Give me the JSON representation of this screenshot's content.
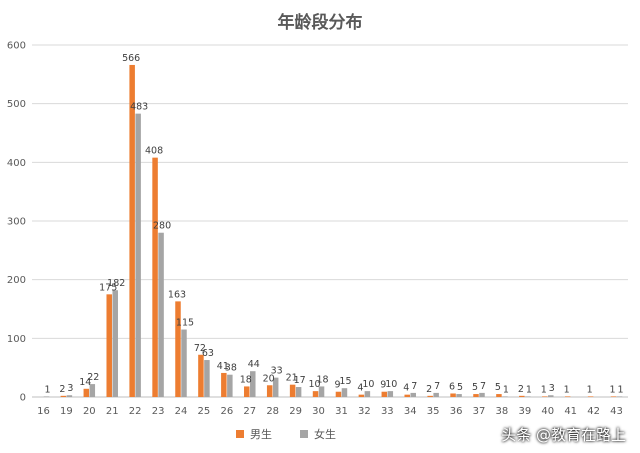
{
  "chart_data": {
    "type": "bar",
    "title": "年龄段分布",
    "categories": [
      "16",
      "19",
      "20",
      "21",
      "22",
      "23",
      "24",
      "25",
      "26",
      "27",
      "28",
      "29",
      "30",
      "31",
      "32",
      "33",
      "34",
      "35",
      "36",
      "37",
      "38",
      "39",
      "40",
      "41",
      "42",
      "43"
    ],
    "series": [
      {
        "name": "男生",
        "color": "#ED7D31",
        "values": [
          0,
          2,
          14,
          175,
          566,
          408,
          163,
          72,
          41,
          18,
          20,
          21,
          10,
          9,
          4,
          9,
          4,
          2,
          6,
          5,
          5,
          2,
          1,
          1,
          1,
          1
        ]
      },
      {
        "name": "女生",
        "color": "#A5A5A5",
        "values": [
          1,
          3,
          22,
          182,
          483,
          280,
          115,
          63,
          38,
          44,
          33,
          17,
          18,
          15,
          10,
          10,
          7,
          7,
          5,
          7,
          1,
          1,
          3,
          0,
          0,
          1
        ]
      }
    ],
    "ylim": [
      0,
      600
    ],
    "yticks": [
      0,
      100,
      200,
      300,
      400,
      500,
      600
    ],
    "grid": true,
    "legend": "bottom",
    "xlabel": "",
    "ylabel": ""
  },
  "watermark": "头条 @教育在路上"
}
